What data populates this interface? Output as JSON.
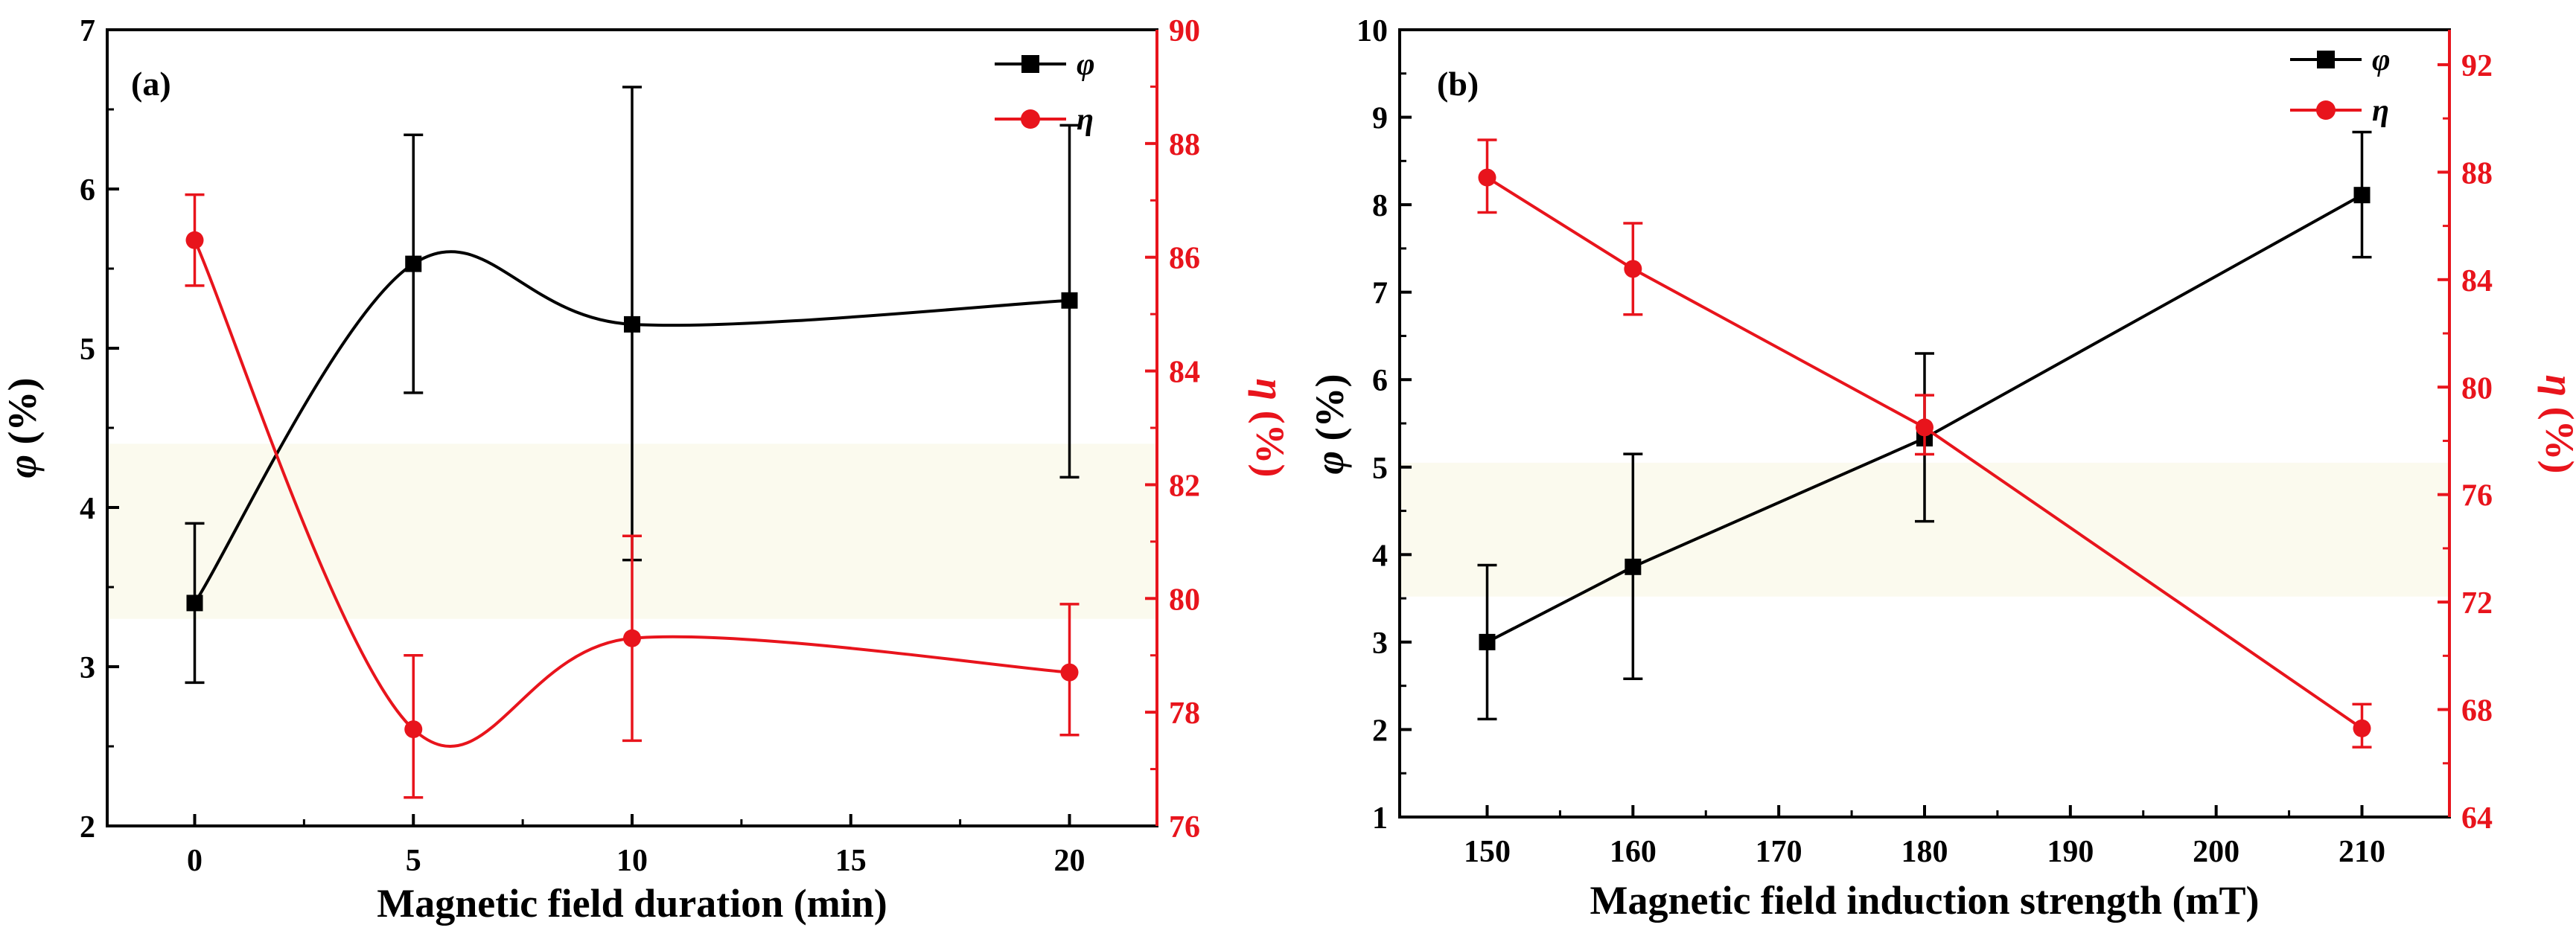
{
  "colors": {
    "phi": "#000000",
    "eta": "#e8141c",
    "shade": "#fbfaee"
  },
  "chart_data": [
    {
      "panel_label": "(a)",
      "type": "line",
      "smooth": true,
      "xlabel": "Magnetic field duration (min)",
      "ylabel_left": {
        "symbol": "φ",
        "unit": " (%)"
      },
      "ylabel_right": {
        "symbol": "η",
        "unit": " (%)"
      },
      "xlim": [
        -2,
        22
      ],
      "ylim_left": [
        2,
        7
      ],
      "ylim_right": [
        76,
        90
      ],
      "x_ticks": [
        0,
        5,
        10,
        15,
        20
      ],
      "x_tick_labels": [
        "0",
        "5",
        "10",
        "15",
        "20"
      ],
      "y_left_ticks": [
        2,
        3,
        4,
        5,
        6,
        7
      ],
      "y_left_tick_labels": [
        "2",
        "3",
        "4",
        "5",
        "6",
        "7"
      ],
      "y_right_ticks": [
        76,
        78,
        80,
        82,
        84,
        86,
        88,
        90
      ],
      "y_right_tick_labels": [
        "76",
        "78",
        "80",
        "82",
        "84",
        "86",
        "88",
        "90"
      ],
      "legend": {
        "placement": "top-right",
        "entries": [
          "φ",
          "η"
        ]
      },
      "series": [
        {
          "name": "φ",
          "axis": "left",
          "marker": "square",
          "x": [
            0,
            5,
            10,
            20
          ],
          "y": [
            3.4,
            5.53,
            5.15,
            5.3
          ],
          "err_low": [
            2.9,
            4.72,
            3.67,
            4.19
          ],
          "err_high": [
            3.9,
            6.34,
            6.64,
            6.4
          ]
        },
        {
          "name": "η",
          "axis": "right",
          "marker": "circle",
          "x": [
            0,
            5,
            10,
            20
          ],
          "y": [
            86.3,
            77.7,
            79.3,
            78.7
          ],
          "err_low": [
            85.5,
            76.5,
            77.5,
            77.6
          ],
          "err_high": [
            87.1,
            79.0,
            81.1,
            79.9
          ]
        }
      ]
    },
    {
      "panel_label": "(b)",
      "type": "line",
      "smooth": false,
      "xlabel": "Magnetic field  induction strength (mT)",
      "ylabel_left": {
        "symbol": "φ",
        "unit": " (%)"
      },
      "ylabel_right": {
        "symbol": "η",
        "unit": " (%)"
      },
      "xlim": [
        144,
        216
      ],
      "ylim_left": [
        1,
        10
      ],
      "ylim_right": [
        64,
        93.3
      ],
      "x_ticks": [
        150,
        160,
        170,
        180,
        190,
        200,
        210
      ],
      "x_tick_labels": [
        "150",
        "160",
        "170",
        "180",
        "190",
        "200",
        "210"
      ],
      "y_left_ticks": [
        1,
        2,
        3,
        4,
        5,
        6,
        7,
        8,
        9,
        10
      ],
      "y_left_tick_labels": [
        "1",
        "2",
        "3",
        "4",
        "5",
        "6",
        "7",
        "8",
        "9",
        "10"
      ],
      "y_right_ticks": [
        64,
        68,
        72,
        76,
        80,
        84,
        88,
        92
      ],
      "y_right_tick_labels": [
        "64",
        "68",
        "72",
        "76",
        "80",
        "84",
        "88",
        "92"
      ],
      "legend": {
        "placement": "top-right",
        "entries": [
          "φ",
          "η"
        ]
      },
      "series": [
        {
          "name": "φ",
          "axis": "left",
          "marker": "square",
          "x": [
            150,
            160,
            180,
            210
          ],
          "y": [
            3.0,
            3.86,
            5.33,
            8.11
          ],
          "err_low": [
            2.12,
            2.58,
            4.38,
            7.4
          ],
          "err_high": [
            3.88,
            5.15,
            6.3,
            8.83
          ]
        },
        {
          "name": "η",
          "axis": "right",
          "marker": "circle",
          "x": [
            150,
            160,
            180,
            210
          ],
          "y": [
            87.8,
            84.4,
            78.5,
            67.3
          ],
          "err_low": [
            86.5,
            82.7,
            77.5,
            66.6
          ],
          "err_high": [
            89.2,
            86.1,
            79.7,
            68.2
          ]
        }
      ]
    }
  ]
}
